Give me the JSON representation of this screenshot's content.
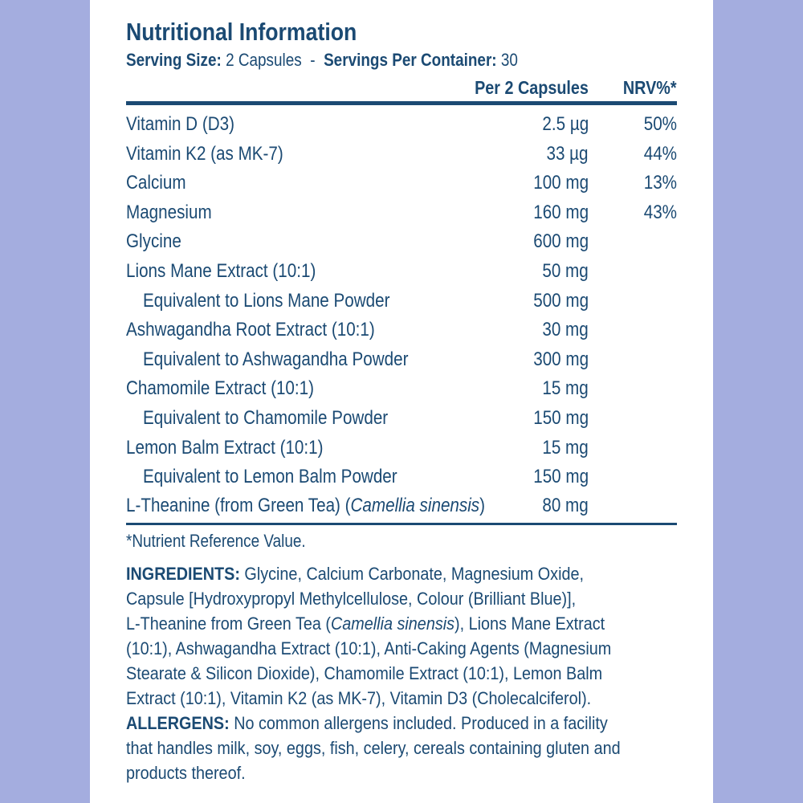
{
  "title": "Nutritional Information",
  "serving": {
    "size_label": "Serving Size:",
    "size_value": " 2 Capsules",
    "sep": "  -  ",
    "per_label": "Servings Per Container:",
    "per_value": " 30"
  },
  "header": {
    "amount": "Per 2 Capsules",
    "nrv": "NRV%*"
  },
  "rows": [
    {
      "name": "Vitamin D (D3)",
      "amount": "2.5 µg",
      "nrv": "50%"
    },
    {
      "name": "Vitamin K2 (as MK-7)",
      "amount": "33 µg",
      "nrv": "44%"
    },
    {
      "name": "Calcium",
      "amount": "100 mg",
      "nrv": "13%"
    },
    {
      "name": "Magnesium",
      "amount": "160 mg",
      "nrv": "43%"
    },
    {
      "name": "Glycine",
      "amount": "600 mg",
      "nrv": ""
    },
    {
      "name": "Lions Mane Extract (10:1)",
      "amount": "50 mg",
      "nrv": ""
    },
    {
      "name": "Equivalent to Lions Mane Powder",
      "amount": "500 mg",
      "nrv": "",
      "indent": true
    },
    {
      "name": "Ashwagandha Root Extract (10:1)",
      "amount": "30 mg",
      "nrv": ""
    },
    {
      "name": "Equivalent to Ashwagandha Powder",
      "amount": "300 mg",
      "nrv": "",
      "indent": true
    },
    {
      "name": "Chamomile Extract (10:1)",
      "amount": "15 mg",
      "nrv": ""
    },
    {
      "name": "Equivalent to Chamomile Powder",
      "amount": "150 mg",
      "nrv": "",
      "indent": true
    },
    {
      "name": "Lemon Balm Extract (10:1)",
      "amount": "15 mg",
      "nrv": ""
    },
    {
      "name": "Equivalent to Lemon Balm Powder",
      "amount": "150 mg",
      "nrv": "",
      "indent": true
    }
  ],
  "last_row": {
    "name": "L-Theanine (from Green Tea) (",
    "name_italic": "Camellia sinensis",
    "name_end": ")",
    "amount": "80 mg"
  },
  "footnote": "*Nutrient Reference Value.",
  "ingredients": {
    "label": "INGREDIENTS:",
    "l1": " Glycine, Calcium Carbonate, Magnesium Oxide,",
    "l2": "Capsule [Hydroxypropyl Methylcellulose, Colour (Brilliant Blue)],",
    "l3a": "L-Theanine from Green Tea (",
    "l3i": "Camellia sinensis",
    "l3b": "), Lions Mane Extract",
    "l4": "(10:1), Ashwagandha Extract (10:1), Anti-Caking Agents (Magnesium",
    "l5": "Stearate & Silicon Dioxide), Chamomile Extract (10:1), Lemon Balm",
    "l6": "Extract (10:1), Vitamin K2 (as MK-7), Vitamin D3 (Cholecalciferol)."
  },
  "allergens": {
    "label": "ALLERGENS:",
    "l1": " No common allergens included. Produced in a facility",
    "l2": "that handles milk, soy, eggs, fish, celery, cereals containing gluten and",
    "l3": "products thereof."
  },
  "colors": {
    "text": "#1b4a73",
    "background": "#a4addf",
    "panel": "#ffffff"
  }
}
